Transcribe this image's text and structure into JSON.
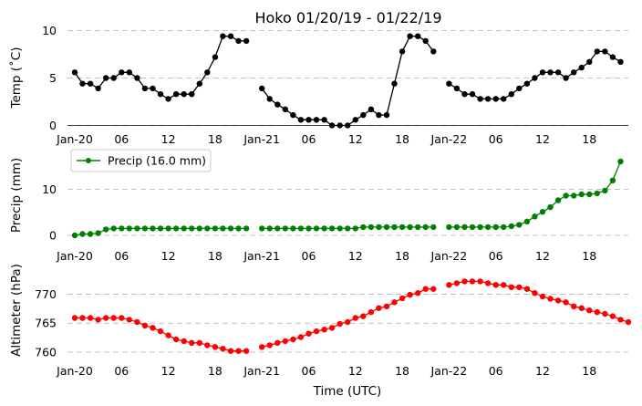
{
  "chart_data": [
    {
      "type": "line",
      "title": "Hoko 01/20/19 - 01/22/19",
      "ylabel": "Temp (˚C)",
      "xlabel": "",
      "ylim": [
        0,
        10
      ],
      "yticks": [
        0,
        5,
        10
      ],
      "grid": true,
      "color": "#000000",
      "x_tick_labels": [
        "Jan-20",
        "06",
        "12",
        "18",
        "Jan-21",
        "06",
        "12",
        "18",
        "Jan-22",
        "06",
        "12",
        "18"
      ],
      "x_tick_hours": [
        0,
        6,
        12,
        18,
        24,
        30,
        36,
        42,
        48,
        54,
        60,
        66
      ],
      "x_hours": [
        0,
        1,
        2,
        3,
        4,
        5,
        6,
        7,
        8,
        9,
        10,
        11,
        12,
        13,
        14,
        15,
        16,
        17,
        18,
        19,
        20,
        21,
        22,
        23,
        24,
        25,
        26,
        27,
        28,
        29,
        30,
        31,
        32,
        33,
        34,
        35,
        36,
        37,
        38,
        39,
        40,
        41,
        42,
        43,
        44,
        45,
        46,
        47,
        48,
        49,
        50,
        51,
        52,
        53,
        54,
        55,
        56,
        57,
        58,
        59,
        60,
        61,
        62,
        63,
        64,
        65,
        66,
        67,
        68,
        69,
        70,
        71
      ],
      "values": [
        5.6,
        4.4,
        4.4,
        3.9,
        5.0,
        5.0,
        5.6,
        5.6,
        5.0,
        3.9,
        3.9,
        3.3,
        2.8,
        3.3,
        3.3,
        3.3,
        4.4,
        5.6,
        7.2,
        9.4,
        9.4,
        8.9,
        8.9,
        null,
        3.9,
        2.8,
        2.2,
        1.7,
        1.1,
        0.6,
        0.6,
        0.6,
        0.6,
        0.0,
        0.0,
        0.0,
        0.6,
        1.1,
        1.7,
        1.1,
        1.1,
        4.4,
        7.8,
        9.4,
        9.4,
        8.9,
        7.8,
        null,
        4.4,
        3.9,
        3.3,
        3.3,
        2.8,
        2.8,
        2.8,
        2.8,
        3.3,
        3.9,
        4.4,
        5.0,
        5.6,
        5.6,
        5.6,
        5.0,
        5.6,
        6.1,
        6.7,
        7.8,
        7.8,
        7.2,
        6.7,
        null
      ]
    },
    {
      "type": "line",
      "ylabel": "Precip (mm)",
      "xlabel": "",
      "ylim": [
        0,
        16.5
      ],
      "yticks": [
        0,
        10
      ],
      "grid": true,
      "legend": "top-left",
      "color": "#008000",
      "series": [
        {
          "name": "Precip (16.0 mm)"
        }
      ],
      "x_tick_labels": [
        "Jan-20",
        "06",
        "12",
        "18",
        "Jan-21",
        "06",
        "12",
        "18",
        "Jan-22",
        "06",
        "12",
        "18"
      ],
      "x_tick_hours": [
        0,
        6,
        12,
        18,
        24,
        30,
        36,
        42,
        48,
        54,
        60,
        66
      ],
      "x_hours": [
        0,
        1,
        2,
        3,
        4,
        5,
        6,
        7,
        8,
        9,
        10,
        11,
        12,
        13,
        14,
        15,
        16,
        17,
        18,
        19,
        20,
        21,
        22,
        23,
        24,
        25,
        26,
        27,
        28,
        29,
        30,
        31,
        32,
        33,
        34,
        35,
        36,
        37,
        38,
        39,
        40,
        41,
        42,
        43,
        44,
        45,
        46,
        47,
        48,
        49,
        50,
        51,
        52,
        53,
        54,
        55,
        56,
        57,
        58,
        59,
        60,
        61,
        62,
        63,
        64,
        65,
        66,
        67,
        68,
        69,
        70,
        71
      ],
      "values": [
        0.0,
        0.3,
        0.3,
        0.5,
        1.3,
        1.5,
        1.5,
        1.5,
        1.5,
        1.5,
        1.5,
        1.5,
        1.5,
        1.5,
        1.5,
        1.5,
        1.5,
        1.5,
        1.5,
        1.5,
        1.5,
        1.5,
        1.5,
        null,
        1.5,
        1.5,
        1.5,
        1.5,
        1.5,
        1.5,
        1.5,
        1.5,
        1.5,
        1.5,
        1.5,
        1.5,
        1.5,
        1.8,
        1.8,
        1.8,
        1.8,
        1.8,
        1.8,
        1.8,
        1.8,
        1.8,
        1.8,
        null,
        1.8,
        1.8,
        1.8,
        1.8,
        1.8,
        1.8,
        1.8,
        1.8,
        2.0,
        2.3,
        3.0,
        4.1,
        5.1,
        6.1,
        7.6,
        8.6,
        8.6,
        8.9,
        8.9,
        9.1,
        9.7,
        11.9,
        16.0,
        null
      ]
    },
    {
      "type": "line",
      "ylabel": "Altimeter (hPa)",
      "xlabel": "Time (UTC)",
      "ylim": [
        757.8,
        774.0
      ],
      "yticks": [
        760,
        765,
        770
      ],
      "grid": true,
      "color": "#ff0000",
      "x_tick_labels": [
        "Jan-20",
        "06",
        "12",
        "18",
        "Jan-21",
        "06",
        "12",
        "18",
        "Jan-22",
        "06",
        "12",
        "18"
      ],
      "x_tick_hours": [
        0,
        6,
        12,
        18,
        24,
        30,
        36,
        42,
        48,
        54,
        60,
        66
      ],
      "x_hours": [
        0,
        1,
        2,
        3,
        4,
        5,
        6,
        7,
        8,
        9,
        10,
        11,
        12,
        13,
        14,
        15,
        16,
        17,
        18,
        19,
        20,
        21,
        22,
        23,
        24,
        25,
        26,
        27,
        28,
        29,
        30,
        31,
        32,
        33,
        34,
        35,
        36,
        37,
        38,
        39,
        40,
        41,
        42,
        43,
        44,
        45,
        46,
        47,
        48,
        49,
        50,
        51,
        52,
        53,
        54,
        55,
        56,
        57,
        58,
        59,
        60,
        61,
        62,
        63,
        64,
        65,
        66,
        67,
        68,
        69,
        70,
        71
      ],
      "values": [
        765.9,
        765.9,
        765.9,
        765.6,
        765.9,
        765.9,
        765.9,
        765.6,
        765.2,
        764.6,
        764.2,
        763.6,
        762.9,
        762.2,
        761.9,
        761.6,
        761.6,
        761.2,
        760.9,
        760.6,
        760.2,
        760.2,
        760.2,
        null,
        760.9,
        761.2,
        761.6,
        761.9,
        762.2,
        762.6,
        763.2,
        763.6,
        763.9,
        764.2,
        764.9,
        765.2,
        765.9,
        766.2,
        766.9,
        767.6,
        767.9,
        768.6,
        769.3,
        769.9,
        770.2,
        770.9,
        770.9,
        null,
        771.6,
        771.9,
        772.2,
        772.2,
        772.2,
        771.9,
        771.6,
        771.6,
        771.2,
        771.2,
        770.9,
        770.2,
        769.6,
        769.2,
        768.9,
        768.6,
        767.9,
        767.6,
        767.2,
        766.9,
        766.6,
        766.2,
        765.6,
        765.2
      ]
    }
  ]
}
